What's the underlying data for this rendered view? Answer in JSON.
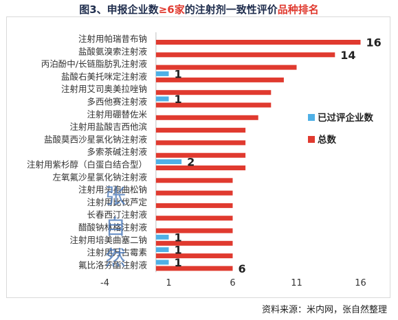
{
  "title": {
    "prefix": "图3、申报企业数",
    "highlight": "≥6家",
    "middle": "的注射剂一致性评价",
    "suffix": "品种排名"
  },
  "source": "资料来源：米内网，张自然整理",
  "watermark": [
    "张",
    "自",
    "然"
  ],
  "chart_data": {
    "type": "bar",
    "orientation": "horizontal",
    "categories": [
      "注射用帕瑞昔布钠",
      "盐酸氨溴索注射液",
      "丙泊酚中/长链脂肪乳注射液",
      "盐酸右美托咪定注射液",
      "注射用艾司奥美拉唑钠",
      "多西他赛注射液",
      "注射用硼替佐米",
      "注射用盐酸吉西他滨",
      "盐酸莫西沙星氯化钠注射液",
      "多索茶碱注射液",
      "注射用紫杉醇（白蛋白结合型）",
      "左氧氟沙星氯化钠注射液",
      "注射用头孢曲松钠",
      "注射用比伐芦定",
      "长春西汀注射液",
      "醋酸钠林格注射液",
      "注射用培美曲塞二钠",
      "注射用万古霉素",
      "氟比洛芬酯注射液"
    ],
    "series": [
      {
        "name": "已过评企业数",
        "color": "#4fb0e6",
        "values": [
          0,
          0,
          0,
          1,
          0,
          1,
          0,
          0,
          0,
          0,
          2,
          0,
          0,
          0,
          0,
          0,
          1,
          1,
          1
        ]
      },
      {
        "name": "总数",
        "color": "#e03a2f",
        "values": [
          16,
          14,
          11,
          10,
          9,
          9,
          8,
          7,
          7,
          7,
          7,
          6,
          6,
          6,
          6,
          6,
          6,
          6,
          6
        ]
      }
    ],
    "data_labels": [
      {
        "series": "总数",
        "category": "注射用帕瑞昔布钠",
        "text": "16"
      },
      {
        "series": "总数",
        "category": "盐酸氨溴索注射液",
        "text": "14"
      },
      {
        "series": "已过评企业数",
        "category": "盐酸右美托咪定注射液",
        "text": "1"
      },
      {
        "series": "已过评企业数",
        "category": "多西他赛注射液",
        "text": "1"
      },
      {
        "series": "已过评企业数",
        "category": "注射用紫杉醇（白蛋白结合型）",
        "text": "2"
      },
      {
        "series": "已过评企业数",
        "category": "注射用培美曲塞二钠",
        "text": "1"
      },
      {
        "series": "已过评企业数",
        "category": "注射用万古霉素",
        "text": "1"
      },
      {
        "series": "已过评企业数",
        "category": "氟比洛芬酯注射液",
        "text": "1"
      },
      {
        "series": "总数",
        "category": "氟比洛芬酯注射液",
        "text": "6"
      }
    ],
    "x_ticks": [
      -4,
      1,
      6,
      11,
      16
    ],
    "xlim": [
      -4,
      16
    ],
    "grid": false,
    "legend_position": "right"
  }
}
